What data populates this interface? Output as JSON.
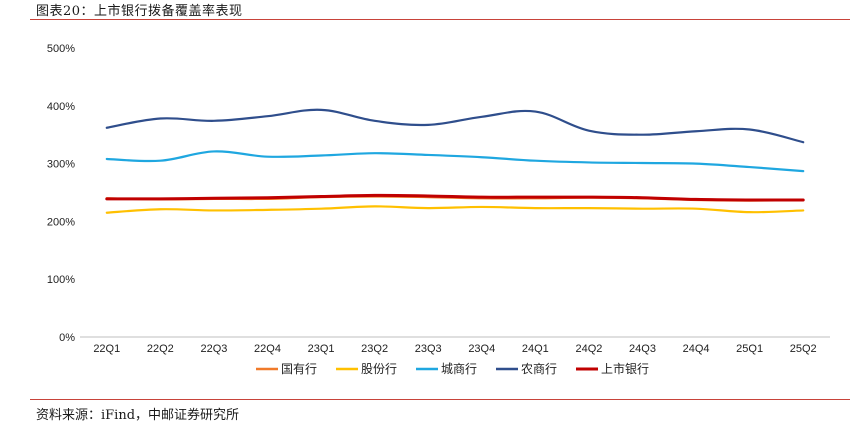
{
  "figure": {
    "title": "图表20：上市银行拨备覆盖率表现",
    "source": "资料来源：iFind，中邮证券研究所"
  },
  "chart_data": {
    "type": "line",
    "categories": [
      "22Q1",
      "22Q2",
      "22Q3",
      "22Q4",
      "23Q1",
      "23Q2",
      "23Q3",
      "23Q4",
      "24Q1",
      "24Q2",
      "24Q3",
      "24Q4",
      "25Q1",
      "25Q2"
    ],
    "ylim": [
      0,
      500
    ],
    "yticks": [
      0,
      100,
      200,
      300,
      400,
      500
    ],
    "ytick_labels": [
      "0%",
      "100%",
      "200%",
      "300%",
      "400%",
      "500%"
    ],
    "grid": false,
    "legend_position": "bottom",
    "series": [
      {
        "name": "国有行",
        "color": "#f07a2a",
        "values": [
          240,
          238,
          239,
          239,
          242,
          243,
          242,
          240,
          240,
          241,
          240,
          237,
          236,
          237
        ]
      },
      {
        "name": "股份行",
        "color": "#ffc000",
        "values": [
          215,
          221,
          219,
          220,
          222,
          226,
          223,
          225,
          223,
          223,
          222,
          222,
          216,
          219
        ]
      },
      {
        "name": "城商行",
        "color": "#1fa7e0",
        "values": [
          308,
          305,
          321,
          312,
          314,
          318,
          315,
          311,
          305,
          302,
          301,
          300,
          294,
          287
        ]
      },
      {
        "name": "农商行",
        "color": "#2f4e8c",
        "values": [
          362,
          378,
          374,
          382,
          393,
          374,
          367,
          381,
          390,
          357,
          350,
          356,
          359,
          337
        ]
      },
      {
        "name": "上市银行",
        "color": "#c00000",
        "values": [
          239,
          239,
          240,
          241,
          243,
          245,
          244,
          242,
          242,
          242,
          241,
          238,
          237,
          237
        ]
      }
    ]
  }
}
